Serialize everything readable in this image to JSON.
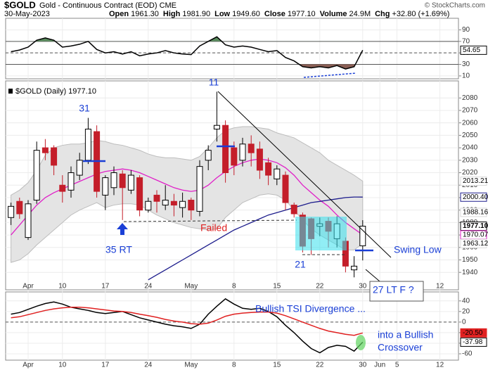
{
  "header": {
    "symbol": "$GOLD",
    "name": "Gold - Continuous Contract (EOD) CME",
    "date": "30-May-2023",
    "credit": "© StockCharts.com",
    "stats": [
      {
        "label": "Open",
        "value": "1961.30"
      },
      {
        "label": "High",
        "value": "1981.90"
      },
      {
        "label": "Low",
        "value": "1949.60"
      },
      {
        "label": "Close",
        "value": "1977.10"
      },
      {
        "label": "Volume",
        "value": "24.9M"
      },
      {
        "label": "Chg",
        "value": "+32.80 (+1.69%)"
      }
    ]
  },
  "annotations": [
    "31",
    "11",
    "35 RT",
    "Failed",
    "21",
    "Swing Low",
    "27 LT F ?",
    "Bullish TSI Divergence ...",
    "into a Bullish",
    "Crossover"
  ],
  "chart_data": [
    {
      "type": "line",
      "ylim": [
        5,
        115
      ],
      "yticks": [
        10,
        30,
        50,
        70,
        90
      ],
      "grid": true,
      "levels": {
        "solid": [
          30,
          70
        ],
        "dashed": [
          50
        ]
      },
      "overbought_color": "#5b8c5f",
      "oversold_color": "#8a5f55",
      "series": [
        {
          "color": "#000000",
          "values": [
            52,
            55,
            60,
            72,
            76,
            72,
            60,
            62,
            65,
            70,
            56,
            50,
            52,
            48,
            52,
            45,
            48,
            50,
            54,
            50,
            48,
            47,
            62,
            70,
            78,
            64,
            60,
            62,
            60,
            56,
            52,
            54,
            42,
            36,
            26,
            24,
            26,
            24,
            28,
            22,
            26,
            54.65,
            null,
            null,
            null,
            null,
            null,
            null,
            null,
            null,
            null,
            null,
            null
          ]
        }
      ]
    },
    {
      "type": "candlestick",
      "title": "$GOLD (Daily) 1977.10",
      "categories": [
        null,
        null,
        "Apr",
        null,
        null,
        null,
        "10",
        null,
        null,
        null,
        null,
        "17",
        null,
        null,
        null,
        null,
        "24",
        null,
        null,
        null,
        null,
        "May",
        null,
        null,
        null,
        null,
        "8",
        null,
        null,
        null,
        null,
        "15",
        null,
        null,
        null,
        null,
        "22",
        null,
        null,
        null,
        null,
        "30",
        null,
        "Jun",
        null,
        "5",
        null,
        null,
        null,
        null,
        "12",
        null,
        null
      ],
      "ylim": [
        1926,
        2092
      ],
      "yticks": [
        1940,
        1950,
        1960,
        1970,
        1980,
        1990,
        2000,
        2010,
        2020,
        2030,
        2040,
        2050,
        2060,
        2070,
        2080
      ],
      "grid": true,
      "up_color": "#ffffff",
      "down_color": "#c41e2a",
      "open": [
        1984,
        1997,
        1968,
        1998,
        2040,
        2040,
        2010,
        2006,
        2018,
        2030,
        2053,
        2002,
        2008,
        2019,
        2006,
        2016,
        1990,
        2002,
        1994,
        1997,
        1992,
        1998,
        1989,
        2030,
        2055,
        2058,
        2040,
        2030,
        2043,
        2039,
        2028,
        2015,
        2018,
        1994,
        1986,
        1983,
        1977,
        1981,
        1967,
        1965,
        1942,
        1961.3,
        null,
        null,
        null,
        null,
        null,
        null,
        null,
        null,
        null,
        null,
        null
      ],
      "high": [
        1996,
        2000,
        1998,
        2045,
        2047,
        2042,
        2018,
        2025,
        2036,
        2064,
        2058,
        2018,
        2025,
        2022,
        2022,
        2018,
        2000,
        2006,
        2010,
        2003,
        2004,
        2000,
        2030,
        2042,
        2085,
        2062,
        2045,
        2048,
        2050,
        2045,
        2032,
        2026,
        2021,
        1996,
        1988,
        1984,
        1984,
        1984,
        1985,
        1968,
        1953,
        1981.9,
        null,
        null,
        null,
        null,
        null,
        null,
        null,
        null,
        null,
        null,
        null
      ],
      "low": [
        1978,
        1983,
        1966,
        1995,
        2030,
        2018,
        1996,
        2000,
        2014,
        2027,
        2000,
        1990,
        2002,
        1982,
        2003,
        1985,
        1988,
        1988,
        1990,
        1985,
        1984,
        1982,
        1985,
        2022,
        2045,
        2012,
        2018,
        2025,
        2025,
        2015,
        2010,
        2010,
        1990,
        1984,
        1956,
        1954,
        1969,
        1960,
        1960,
        1940,
        1936,
        1949.6,
        null,
        null,
        null,
        null,
        null,
        null,
        null,
        null,
        null,
        null,
        null
      ],
      "close": [
        1993,
        1987,
        1995,
        2038,
        2036,
        2026,
        2005,
        2020,
        2030,
        2055,
        2005,
        2016,
        2020,
        2008,
        2018,
        1990,
        1997,
        1997,
        1998,
        1994,
        1997,
        1990,
        2025,
        2038,
        2058,
        2020,
        2026,
        2043,
        2036,
        2022,
        2018,
        2023,
        1996,
        1987,
        1961,
        1967,
        1979,
        1973,
        1979,
        1945,
        1945,
        1977.1,
        null,
        null,
        null,
        null,
        null,
        null,
        null,
        null,
        null,
        null,
        null
      ],
      "band": {
        "color": "#e4e4e4",
        "upper": [
          2002,
          2006,
          2012,
          2022,
          2034,
          2040,
          2042,
          2043,
          2043,
          2044,
          2046,
          2045,
          2043,
          2042,
          2040,
          2038,
          2035,
          2033,
          2032,
          2032,
          2031,
          2030,
          2033,
          2040,
          2048,
          2054,
          2056,
          2057,
          2057,
          2056,
          2055,
          2052,
          2050,
          2048,
          2044,
          2040,
          2036,
          2030,
          2026,
          2022,
          2018,
          2013.21,
          null,
          null,
          null,
          null,
          null,
          null,
          null,
          null,
          null,
          null,
          null
        ],
        "lower": [
          1948,
          1950,
          1955,
          1962,
          1968,
          1974,
          1980,
          1986,
          1990,
          1993,
          1996,
          1992,
          1994,
          1995,
          1995,
          1994,
          1990,
          1986,
          1983,
          1980,
          1978,
          1976,
          1975,
          1974,
          1975,
          1984,
          1990,
          1996,
          1999,
          2002,
          2003,
          2002,
          1998,
          1990,
          1982,
          1975,
          1970,
          1966,
          1962,
          1958,
          1958,
          1963.12,
          null,
          null,
          null,
          null,
          null,
          null,
          null,
          null,
          null,
          null,
          null
        ]
      },
      "overlays": [
        {
          "color": "#e020c8",
          "values": [
            1970,
            1978,
            1986,
            1994,
            2000,
            2004,
            2007,
            2010,
            2013,
            2016,
            2019,
            2021,
            2022,
            2023,
            2022,
            2020,
            2017,
            2014,
            2011,
            2008,
            2006,
            2005,
            2006,
            2010,
            2016,
            2021,
            2025,
            2028,
            2030,
            2031,
            2030,
            2028,
            2024,
            2018,
            2010,
            2004,
            1998,
            1993,
            1986,
            1980,
            1975,
            1970.07,
            null,
            null,
            null,
            null,
            null,
            null,
            null,
            null,
            null,
            null,
            null
          ]
        },
        {
          "color": "#1c1c8c",
          "values": [
            null,
            null,
            null,
            null,
            null,
            null,
            null,
            null,
            null,
            null,
            null,
            null,
            null,
            null,
            null,
            null,
            1934,
            1938,
            1942,
            1946,
            1950,
            1954,
            1958,
            1962,
            1966,
            1970,
            1974,
            1977,
            1980,
            1983,
            1986,
            1988,
            1990,
            1992,
            1994,
            1996,
            1997,
            1998,
            1999,
            2000,
            2000.5,
            2000.4,
            null,
            null,
            null,
            null,
            null,
            null,
            null,
            null,
            null,
            null,
            null
          ]
        }
      ],
      "price_labels": [
        {
          "value": 2013.21,
          "label": "2013.21",
          "color": "#d8d8d8",
          "text_color": "#000000"
        },
        {
          "value": 2000.4,
          "label": "2000.40",
          "color": "#1c1c8c",
          "text_color": "#000000"
        },
        {
          "value": 1988.16,
          "label": "1988.16",
          "color": "#d8d8d8",
          "text_color": "#000000"
        },
        {
          "value": 1977.1,
          "label": "1977.10",
          "color": "#000000",
          "text_color": "#000000"
        },
        {
          "value": 1970.07,
          "label": "1970.07",
          "color": "#e020c8",
          "text_color": "#000000"
        },
        {
          "value": 1963.12,
          "label": "1963.12",
          "color": "#d8d8d8",
          "text_color": "#000000"
        }
      ]
    },
    {
      "type": "line",
      "categories": [
        null,
        null,
        "Apr",
        null,
        null,
        null,
        "10",
        null,
        null,
        null,
        null,
        "17",
        null,
        null,
        null,
        null,
        "24",
        null,
        null,
        null,
        null,
        "May",
        null,
        null,
        null,
        null,
        "8",
        null,
        null,
        null,
        null,
        "15",
        null,
        null,
        null,
        null,
        "22",
        null,
        null,
        null,
        null,
        "30",
        null,
        "Jun",
        null,
        "5",
        null,
        null,
        null,
        null,
        "12",
        null,
        null
      ],
      "ylim": [
        -72,
        57
      ],
      "yticks": [
        40,
        20,
        0,
        -20,
        -40,
        -60
      ],
      "grid": true,
      "levels": {
        "solid": [],
        "dashed": [
          0
        ]
      },
      "series": [
        {
          "color": "#000000",
          "values": [
            15,
            18,
            24,
            30,
            35,
            38,
            34,
            28,
            25,
            22,
            18,
            16,
            18,
            20,
            14,
            8,
            4,
            0,
            -4,
            -7,
            -9,
            -12,
            -4,
            15,
            30,
            44,
            34,
            26,
            24,
            26,
            20,
            10,
            -6,
            -20,
            -36,
            -50,
            -58,
            -48,
            -44,
            -46,
            -55,
            -37.98,
            null,
            null,
            null,
            null,
            null,
            null,
            null,
            null,
            null,
            null,
            null
          ]
        },
        {
          "color": "#e02020",
          "last_label": "-20.50",
          "values": [
            8,
            10,
            14,
            18,
            22,
            25,
            27,
            28,
            28,
            27,
            25,
            23,
            21,
            20,
            18,
            15,
            12,
            9,
            5,
            2,
            0,
            -3,
            -4,
            -2,
            4,
            11,
            15,
            17,
            18,
            19,
            19,
            17,
            12,
            6,
            0,
            -6,
            -12,
            -17,
            -20,
            -23,
            -25,
            -20.5,
            null,
            null,
            null,
            null,
            null,
            null,
            null,
            null,
            null,
            null,
            null
          ]
        }
      ]
    }
  ]
}
